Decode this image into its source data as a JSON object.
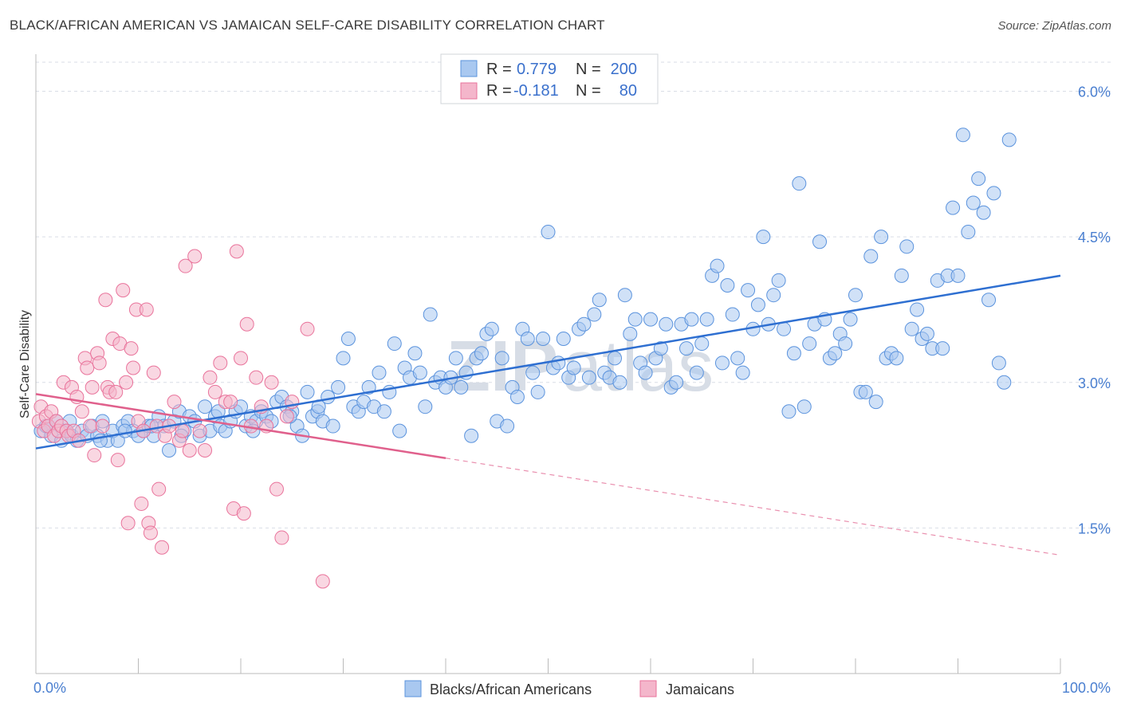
{
  "title": "BLACK/AFRICAN AMERICAN VS JAMAICAN SELF-CARE DISABILITY CORRELATION CHART",
  "source": "Source: ZipAtlas.com",
  "watermark": {
    "zip": "ZIP",
    "atlas": "atlas"
  },
  "colors": {
    "blue": "#5b93dd",
    "blue_fill": "#a9c8f0",
    "pink": "#e9739b",
    "pink_fill": "#f4b6cb",
    "tick": "#4a7fd0",
    "grid": "#d9dee6"
  },
  "stats": [
    {
      "swatch": "blue",
      "r_label": "R =",
      "r_value": "0.779",
      "n_label": "N =",
      "n_value": "200"
    },
    {
      "swatch": "pink",
      "r_label": "R =",
      "r_value": "-0.181",
      "n_label": "N =",
      "n_value": "80"
    }
  ],
  "chart_data": {
    "type": "scatter",
    "ylabel": "Self-Care Disability",
    "xlim": [
      0,
      100
    ],
    "ylim": [
      0,
      6.3
    ],
    "x_tick_labels": [
      "0.0%",
      "100.0%"
    ],
    "y_ticks": [
      1.5,
      3.0,
      4.5,
      6.0
    ],
    "y_tick_labels": [
      "1.5%",
      "3.0%",
      "4.5%",
      "6.0%"
    ],
    "grid": "horizontal dashed",
    "legend_position": "bottom-center",
    "series": [
      {
        "name": "Blacks/African Americans",
        "color": "blue",
        "trend": {
          "x1": 0,
          "y1": 2.32,
          "x2": 100,
          "y2": 4.1
        },
        "points": [
          [
            0.5,
            2.5
          ],
          [
            1,
            2.55
          ],
          [
            1.5,
            2.45
          ],
          [
            2,
            2.6
          ],
          [
            2.5,
            2.4
          ],
          [
            3,
            2.5
          ],
          [
            3.5,
            2.45
          ],
          [
            4,
            2.4
          ],
          [
            4.5,
            2.5
          ],
          [
            5,
            2.45
          ],
          [
            5.5,
            2.55
          ],
          [
            6,
            2.45
          ],
          [
            6.5,
            2.6
          ],
          [
            7,
            2.4
          ],
          [
            7.5,
            2.5
          ],
          [
            8,
            2.4
          ],
          [
            8.5,
            2.55
          ],
          [
            9,
            2.6
          ],
          [
            9.5,
            2.5
          ],
          [
            10,
            2.45
          ],
          [
            10.5,
            2.5
          ],
          [
            11,
            2.55
          ],
          [
            11.5,
            2.45
          ],
          [
            12,
            2.65
          ],
          [
            12.5,
            2.55
          ],
          [
            13,
            2.3
          ],
          [
            13.5,
            2.6
          ],
          [
            14,
            2.7
          ],
          [
            14.5,
            2.5
          ],
          [
            15,
            2.65
          ],
          [
            15.5,
            2.6
          ],
          [
            16,
            2.45
          ],
          [
            16.5,
            2.75
          ],
          [
            17,
            2.5
          ],
          [
            17.5,
            2.65
          ],
          [
            18,
            2.55
          ],
          [
            18.5,
            2.5
          ],
          [
            19,
            2.6
          ],
          [
            19.5,
            2.7
          ],
          [
            20,
            2.75
          ],
          [
            20.5,
            2.55
          ],
          [
            21,
            2.65
          ],
          [
            21.5,
            2.6
          ],
          [
            22,
            2.7
          ],
          [
            22.5,
            2.65
          ],
          [
            23,
            2.6
          ],
          [
            23.5,
            2.8
          ],
          [
            24,
            2.85
          ],
          [
            24.5,
            2.75
          ],
          [
            25,
            2.7
          ],
          [
            25.5,
            2.55
          ],
          [
            26,
            2.45
          ],
          [
            26.5,
            2.9
          ],
          [
            27,
            2.65
          ],
          [
            27.5,
            2.7
          ],
          [
            28,
            2.6
          ],
          [
            28.5,
            2.85
          ],
          [
            29,
            2.55
          ],
          [
            29.5,
            2.95
          ],
          [
            30,
            3.25
          ],
          [
            30.5,
            3.45
          ],
          [
            31,
            2.75
          ],
          [
            31.5,
            2.7
          ],
          [
            32,
            2.8
          ],
          [
            32.5,
            2.95
          ],
          [
            33,
            2.75
          ],
          [
            33.5,
            3.1
          ],
          [
            34,
            2.7
          ],
          [
            34.5,
            2.9
          ],
          [
            35,
            3.4
          ],
          [
            35.5,
            2.5
          ],
          [
            36,
            3.15
          ],
          [
            36.5,
            3.05
          ],
          [
            37,
            3.3
          ],
          [
            37.5,
            3.1
          ],
          [
            38,
            2.75
          ],
          [
            38.5,
            3.7
          ],
          [
            39,
            3.0
          ],
          [
            39.5,
            3.05
          ],
          [
            40,
            2.95
          ],
          [
            40.5,
            3.05
          ],
          [
            41,
            3.25
          ],
          [
            41.5,
            2.95
          ],
          [
            42,
            3.1
          ],
          [
            42.5,
            2.45
          ],
          [
            43,
            3.25
          ],
          [
            43.5,
            3.3
          ],
          [
            44,
            3.5
          ],
          [
            44.5,
            3.55
          ],
          [
            45,
            2.6
          ],
          [
            45.5,
            3.25
          ],
          [
            46,
            2.55
          ],
          [
            46.5,
            2.95
          ],
          [
            47,
            2.85
          ],
          [
            47.5,
            3.55
          ],
          [
            48,
            3.45
          ],
          [
            48.5,
            3.1
          ],
          [
            49,
            2.9
          ],
          [
            49.5,
            3.45
          ],
          [
            50,
            4.55
          ],
          [
            50.5,
            3.15
          ],
          [
            51,
            3.2
          ],
          [
            51.5,
            3.45
          ],
          [
            52,
            3.05
          ],
          [
            52.5,
            3.15
          ],
          [
            53,
            3.55
          ],
          [
            53.5,
            3.6
          ],
          [
            54,
            3.05
          ],
          [
            54.5,
            3.7
          ],
          [
            55,
            3.85
          ],
          [
            55.5,
            3.1
          ],
          [
            56,
            3.05
          ],
          [
            56.5,
            3.25
          ],
          [
            57,
            3.0
          ],
          [
            57.5,
            3.9
          ],
          [
            58,
            3.5
          ],
          [
            58.5,
            3.65
          ],
          [
            59,
            3.2
          ],
          [
            59.5,
            3.1
          ],
          [
            60,
            3.65
          ],
          [
            60.5,
            3.25
          ],
          [
            61,
            3.35
          ],
          [
            61.5,
            3.6
          ],
          [
            62,
            2.95
          ],
          [
            62.5,
            3.0
          ],
          [
            63,
            3.6
          ],
          [
            63.5,
            3.35
          ],
          [
            64,
            3.65
          ],
          [
            64.5,
            3.1
          ],
          [
            65,
            3.4
          ],
          [
            65.5,
            3.65
          ],
          [
            66,
            4.1
          ],
          [
            66.5,
            4.2
          ],
          [
            67,
            3.2
          ],
          [
            67.5,
            4.0
          ],
          [
            68,
            3.7
          ],
          [
            68.5,
            3.25
          ],
          [
            69,
            3.1
          ],
          [
            69.5,
            3.95
          ],
          [
            70,
            3.55
          ],
          [
            70.5,
            3.8
          ],
          [
            71,
            4.5
          ],
          [
            71.5,
            3.6
          ],
          [
            72,
            3.9
          ],
          [
            72.5,
            4.05
          ],
          [
            73,
            3.55
          ],
          [
            73.5,
            2.7
          ],
          [
            74,
            3.3
          ],
          [
            74.5,
            5.05
          ],
          [
            75,
            2.75
          ],
          [
            75.5,
            3.4
          ],
          [
            76,
            3.6
          ],
          [
            76.5,
            4.45
          ],
          [
            77,
            3.65
          ],
          [
            77.5,
            3.25
          ],
          [
            78,
            3.3
          ],
          [
            78.5,
            3.5
          ],
          [
            79,
            3.4
          ],
          [
            79.5,
            3.65
          ],
          [
            80,
            3.9
          ],
          [
            80.5,
            2.9
          ],
          [
            81,
            2.9
          ],
          [
            81.5,
            4.3
          ],
          [
            82,
            2.8
          ],
          [
            82.5,
            4.5
          ],
          [
            83,
            3.25
          ],
          [
            83.5,
            3.3
          ],
          [
            84,
            3.25
          ],
          [
            84.5,
            4.1
          ],
          [
            85,
            4.4
          ],
          [
            85.5,
            3.55
          ],
          [
            86,
            3.75
          ],
          [
            86.5,
            3.45
          ],
          [
            87,
            3.5
          ],
          [
            87.5,
            3.35
          ],
          [
            88,
            4.05
          ],
          [
            88.5,
            3.35
          ],
          [
            89,
            4.1
          ],
          [
            89.5,
            4.8
          ],
          [
            90,
            4.1
          ],
          [
            90.5,
            5.55
          ],
          [
            91,
            4.55
          ],
          [
            91.5,
            4.85
          ],
          [
            92,
            5.1
          ],
          [
            92.5,
            4.75
          ],
          [
            93,
            3.85
          ],
          [
            93.5,
            4.95
          ],
          [
            94,
            3.2
          ],
          [
            94.5,
            3.0
          ],
          [
            95,
            5.5
          ],
          [
            1.2,
            2.55
          ],
          [
            3.3,
            2.6
          ],
          [
            6.3,
            2.4
          ],
          [
            8.7,
            2.5
          ],
          [
            11.3,
            2.55
          ],
          [
            14.2,
            2.45
          ],
          [
            17.8,
            2.7
          ],
          [
            21.2,
            2.5
          ],
          [
            24.8,
            2.65
          ],
          [
            27.6,
            2.75
          ]
        ]
      },
      {
        "name": "Jamaicans",
        "color": "pink",
        "trend": {
          "x1": 0,
          "y1": 2.88,
          "x2": 40,
          "y2": 2.22,
          "dash_x2": 100,
          "dash_y2": 1.22
        },
        "points": [
          [
            0.3,
            2.6
          ],
          [
            0.5,
            2.75
          ],
          [
            0.8,
            2.5
          ],
          [
            1,
            2.65
          ],
          [
            1.2,
            2.55
          ],
          [
            1.5,
            2.7
          ],
          [
            1.8,
            2.45
          ],
          [
            2,
            2.6
          ],
          [
            2.2,
            2.5
          ],
          [
            2.5,
            2.55
          ],
          [
            2.7,
            3.0
          ],
          [
            3,
            2.5
          ],
          [
            3.2,
            2.45
          ],
          [
            3.5,
            2.95
          ],
          [
            3.7,
            2.5
          ],
          [
            4,
            2.85
          ],
          [
            4.2,
            2.4
          ],
          [
            4.5,
            2.7
          ],
          [
            4.8,
            3.25
          ],
          [
            5,
            3.15
          ],
          [
            5.3,
            2.55
          ],
          [
            5.5,
            2.95
          ],
          [
            5.7,
            2.25
          ],
          [
            6,
            3.3
          ],
          [
            6.2,
            3.2
          ],
          [
            6.5,
            2.55
          ],
          [
            6.8,
            3.85
          ],
          [
            7,
            2.95
          ],
          [
            7.2,
            2.9
          ],
          [
            7.5,
            3.45
          ],
          [
            7.8,
            2.9
          ],
          [
            8,
            2.2
          ],
          [
            8.2,
            3.4
          ],
          [
            8.5,
            3.95
          ],
          [
            8.8,
            3.0
          ],
          [
            9,
            1.55
          ],
          [
            9.3,
            3.35
          ],
          [
            9.5,
            3.15
          ],
          [
            9.8,
            3.75
          ],
          [
            10,
            2.6
          ],
          [
            10.3,
            1.75
          ],
          [
            10.5,
            2.5
          ],
          [
            10.8,
            3.75
          ],
          [
            11,
            1.55
          ],
          [
            11.2,
            1.45
          ],
          [
            11.5,
            3.1
          ],
          [
            11.8,
            2.55
          ],
          [
            12,
            1.9
          ],
          [
            12.3,
            1.3
          ],
          [
            12.6,
            2.45
          ],
          [
            13,
            2.55
          ],
          [
            13.5,
            2.8
          ],
          [
            14,
            2.4
          ],
          [
            14.3,
            2.5
          ],
          [
            14.6,
            4.2
          ],
          [
            15,
            2.3
          ],
          [
            15.5,
            4.3
          ],
          [
            16,
            2.5
          ],
          [
            16.5,
            2.3
          ],
          [
            17,
            3.05
          ],
          [
            17.5,
            2.9
          ],
          [
            18,
            3.2
          ],
          [
            18.5,
            2.8
          ],
          [
            19,
            2.8
          ],
          [
            19.3,
            1.7
          ],
          [
            19.6,
            4.35
          ],
          [
            20,
            3.25
          ],
          [
            20.3,
            1.65
          ],
          [
            20.6,
            3.6
          ],
          [
            21,
            2.55
          ],
          [
            21.5,
            3.05
          ],
          [
            22,
            2.75
          ],
          [
            22.5,
            2.55
          ],
          [
            23,
            3.0
          ],
          [
            23.5,
            1.9
          ],
          [
            24,
            1.4
          ],
          [
            24.5,
            2.65
          ],
          [
            25,
            2.8
          ],
          [
            26.5,
            3.55
          ],
          [
            28,
            0.95
          ]
        ]
      }
    ]
  },
  "legend": [
    "Blacks/African Americans",
    "Jamaicans"
  ]
}
